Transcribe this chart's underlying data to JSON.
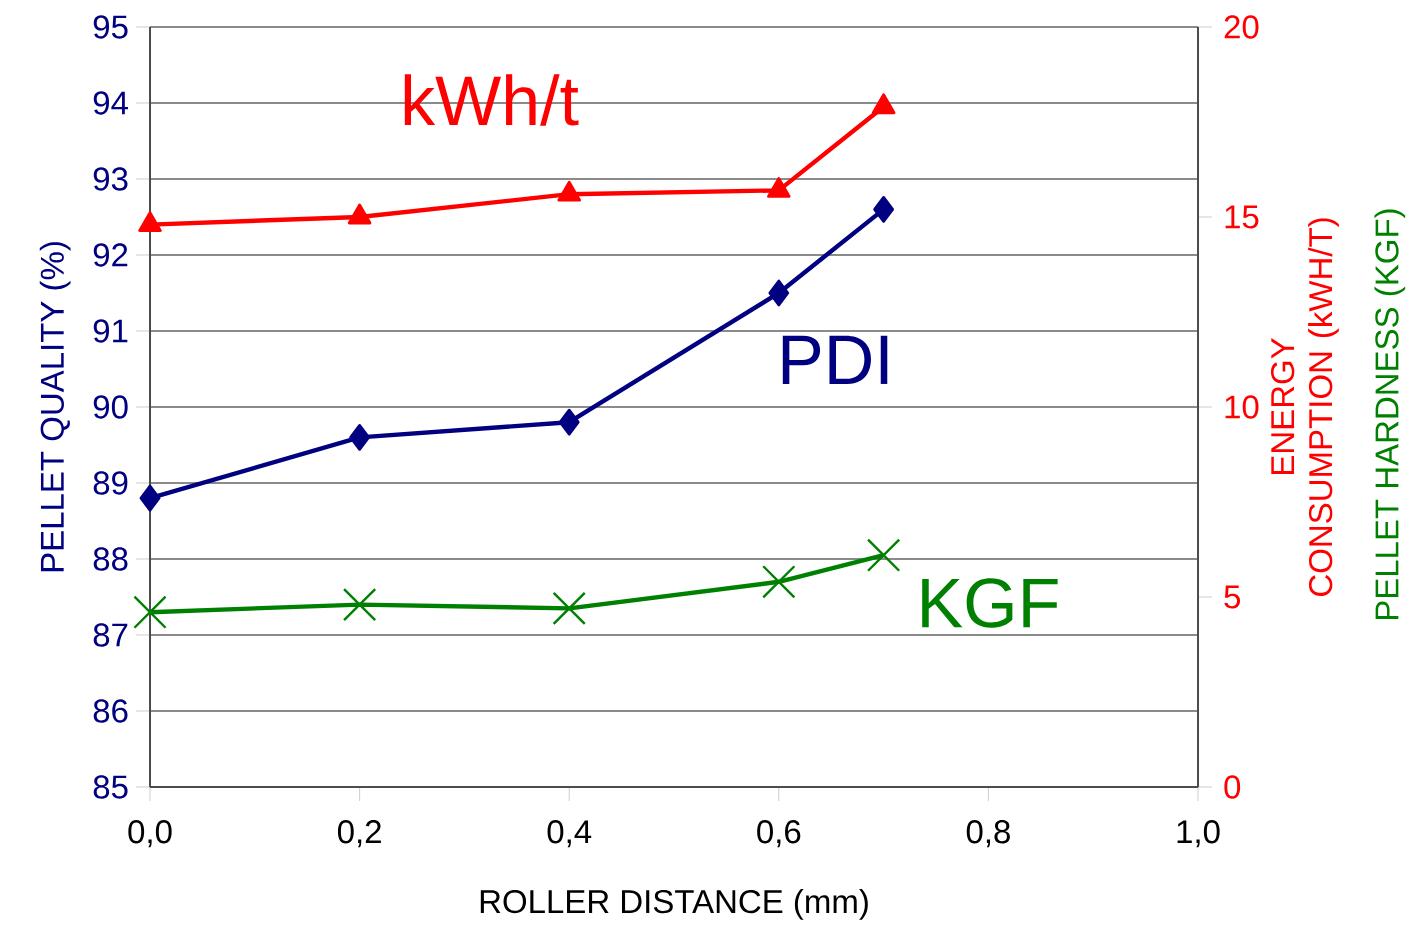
{
  "chart_data": {
    "type": "line",
    "xlabel": "ROLLER DISTANCE (mm)",
    "ylabel": "PELLET QUALITY (%)",
    "y2label": "ENERGY CONSUMPTION (kWH/T)",
    "y3label": "PELLET HARDNESS (KGF)",
    "x": [
      0,
      0.2,
      0.4,
      0.6,
      0.7
    ],
    "xlim": [
      0,
      1
    ],
    "xticks": [
      {
        "value": 0,
        "label": "0,0"
      },
      {
        "value": 0.2,
        "label": "0,2"
      },
      {
        "value": 0.4,
        "label": "0,4"
      },
      {
        "value": 0.6,
        "label": "0,6"
      },
      {
        "value": 0.8,
        "label": "0,8"
      },
      {
        "value": 1,
        "label": "1,0"
      }
    ],
    "ylim": [
      85,
      95
    ],
    "yticks": [
      85,
      86,
      87,
      88,
      89,
      90,
      91,
      92,
      93,
      94,
      95
    ],
    "y2lim": [
      0,
      20
    ],
    "y2ticks": [
      0,
      5,
      10,
      15,
      20
    ],
    "grid": "y",
    "line_style": "solid",
    "series": [
      {
        "name": "kWh/t",
        "color": "#ff0000",
        "axis": "y2",
        "marker": "triangle",
        "values": [
          14.8,
          15.0,
          15.6,
          15.7,
          17.9
        ]
      },
      {
        "name": "PDI",
        "color": "#000080",
        "marker": "diamond",
        "values": [
          88.8,
          89.6,
          89.8,
          91.5,
          92.6
        ]
      },
      {
        "name": "KGF",
        "color": "#008000",
        "axis": "y2",
        "marker": "cross",
        "values": [
          4.6,
          4.8,
          4.7,
          5.4,
          6.1
        ]
      }
    ]
  }
}
